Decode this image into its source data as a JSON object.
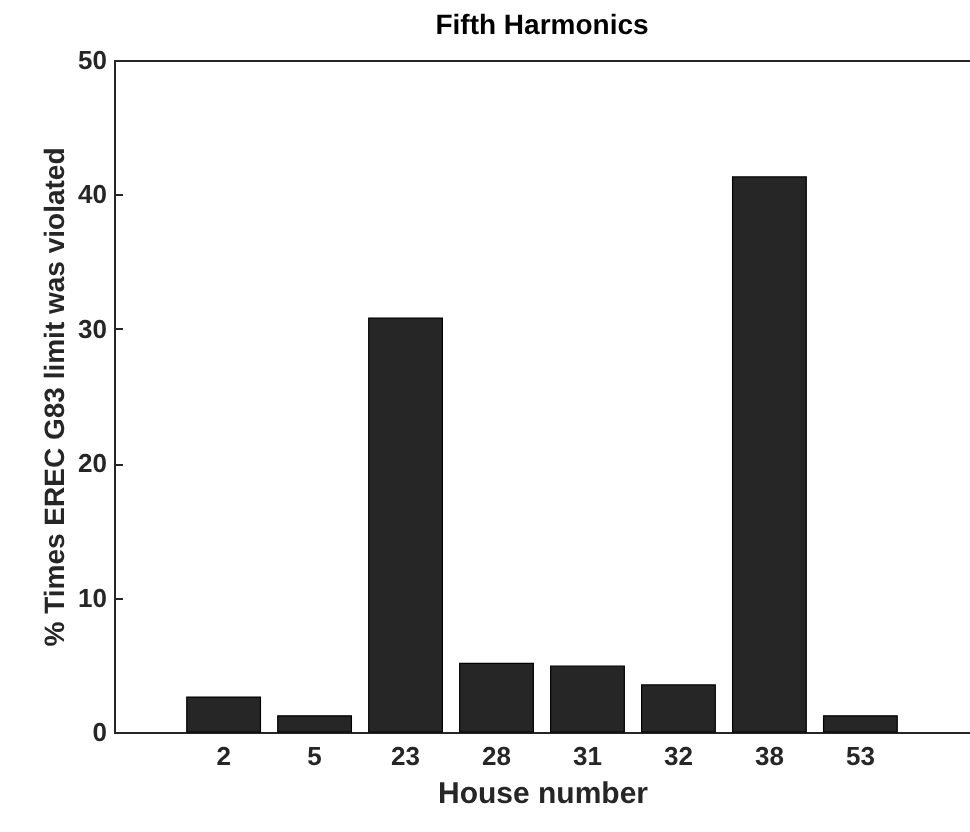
{
  "chart_data": {
    "type": "bar",
    "title": "Fifth Harmonics",
    "xlabel": "House number",
    "ylabel": "% Times EREC G83 limit was violated",
    "categories": [
      "2",
      "5",
      "23",
      "28",
      "31",
      "32",
      "38",
      "53"
    ],
    "values": [
      2.6,
      1.2,
      30.8,
      5.1,
      4.9,
      3.5,
      41.3,
      1.2
    ],
    "color": "#262626",
    "ylim": [
      0,
      50
    ],
    "yticks": [
      0,
      10,
      20,
      30,
      40,
      50
    ],
    "grid": false
  }
}
